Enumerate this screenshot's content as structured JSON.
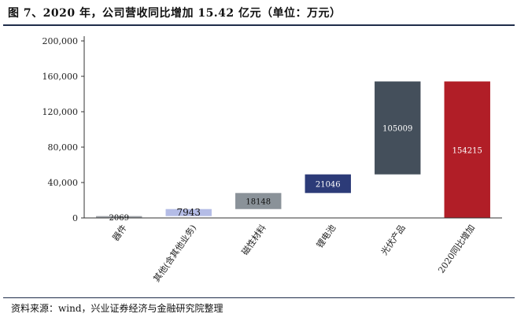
{
  "figure_title": "图 7、2020 年，公司营收同比增加 15.42 亿元（单位：万元）",
  "source_note": "资料来源：wind，兴业证券经济与金融研究院整理",
  "chart_data": {
    "type": "bar",
    "subtype": "waterfall",
    "categories": [
      "器件",
      "其他(含其他业务)",
      "磁性材料",
      "锂电池",
      "光伏产品",
      "2020同比增加"
    ],
    "values": [
      2069,
      7943,
      18148,
      21046,
      105009,
      154215
    ],
    "value_labels": [
      "2069",
      "7943",
      "18148",
      "21046",
      "105009",
      "154215"
    ],
    "ylim": [
      0,
      200000
    ],
    "yticks": [
      "0",
      "40,000",
      "80,000",
      "120,000",
      "160,000",
      "200,000"
    ],
    "ytick_values": [
      0,
      40000,
      80000,
      120000,
      160000,
      200000
    ],
    "colors": [
      "#9fa3a8",
      "#b4bce6",
      "#8a9299",
      "#2c3b78",
      "#444f5b",
      "#b11e27"
    ],
    "label_colors": [
      "#111111",
      "#111111",
      "#111111",
      "#ffffff",
      "#ffffff",
      "#ffffff"
    ],
    "grid": false,
    "legend": "none"
  }
}
